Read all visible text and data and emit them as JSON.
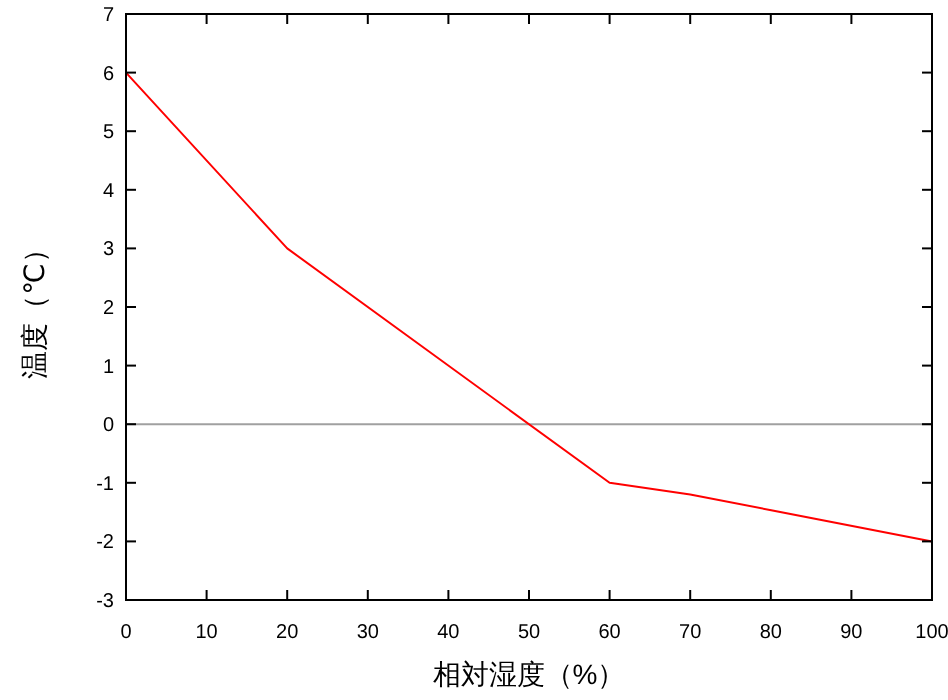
{
  "chart_data": {
    "type": "line",
    "xlabel": "相対湿度（%）",
    "ylabel": "温度（℃）",
    "x": [
      0,
      20,
      60,
      70,
      100
    ],
    "series": [
      {
        "color": "#ff0000",
        "values": [
          6,
          3,
          -1,
          -1.2,
          -2
        ]
      }
    ],
    "xlim": [
      0,
      100
    ],
    "ylim": [
      -3,
      7
    ],
    "xticks": [
      0,
      10,
      20,
      30,
      40,
      50,
      60,
      70,
      80,
      90,
      100
    ],
    "yticks": [
      -3,
      -2,
      -1,
      0,
      1,
      2,
      3,
      4,
      5,
      6,
      7
    ],
    "ref_lines": [
      {
        "axis": "y",
        "value": 0,
        "color": "#a0a0a0"
      }
    ]
  }
}
